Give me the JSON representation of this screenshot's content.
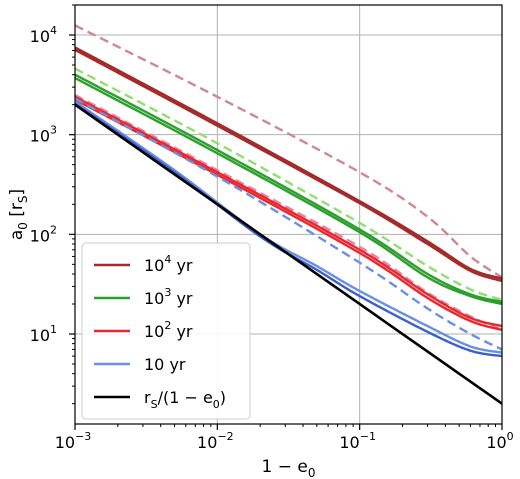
{
  "chart_data": {
    "type": "line",
    "x_scale": "log",
    "y_scale": "log",
    "xlim": [
      0.001,
      1
    ],
    "ylim": [
      1.25,
      20000
    ],
    "grid": true,
    "xlabel": "1 − e₀",
    "ylabel": "a₀ [r_S]",
    "x_ticks": [
      {
        "base": "10",
        "exp": "−3",
        "value": 0.001
      },
      {
        "base": "10",
        "exp": "−2",
        "value": 0.01
      },
      {
        "base": "10",
        "exp": "−1",
        "value": 0.1
      },
      {
        "base": "10",
        "exp": "0",
        "value": 1
      }
    ],
    "y_ticks": [
      {
        "base": "10",
        "exp": "1",
        "value": 10
      },
      {
        "base": "10",
        "exp": "2",
        "value": 100
      },
      {
        "base": "10",
        "exp": "3",
        "value": 1000
      },
      {
        "base": "10",
        "exp": "4",
        "value": 10000
      }
    ],
    "legend": {
      "position": "lower-left",
      "entries": [
        {
          "key": "e4",
          "base": "10",
          "exp": "4",
          "suffix": " yr",
          "color": "#a52a2a"
        },
        {
          "key": "e3",
          "base": "10",
          "exp": "3",
          "suffix": " yr",
          "color": "#2ca02c"
        },
        {
          "key": "e2",
          "base": "10",
          "exp": "2",
          "suffix": " yr",
          "color": "#e8282e"
        },
        {
          "key": "e1",
          "base": "10 yr",
          "exp": "",
          "suffix": "",
          "color": "#6a8fe6"
        },
        {
          "key": "rs",
          "base": "",
          "exp": "",
          "suffix": "",
          "color": "#000000",
          "label": "r_S/(1 − e_0)"
        }
      ]
    },
    "series": [
      {
        "key": "e4-dashed",
        "color": "#d08890",
        "style": "dashed",
        "x": [
          0.001,
          0.01,
          0.1,
          0.3,
          0.6,
          1
        ],
        "y": [
          12500,
          2400,
          420,
          150,
          60,
          37
        ]
      },
      {
        "key": "e4-solid",
        "color": "#a52a2a",
        "style": "solid",
        "x": [
          0.001,
          0.01,
          0.1,
          0.3,
          0.6,
          1
        ],
        "y": [
          7500,
          1300,
          215,
          85,
          45,
          36
        ]
      },
      {
        "key": "e4-solid-2",
        "color": "#a52a2a",
        "style": "solid",
        "x": [
          0.001,
          0.01,
          0.1,
          0.3,
          0.6,
          1
        ],
        "y": [
          7100,
          1230,
          205,
          80,
          43,
          34
        ]
      },
      {
        "key": "e3-dashed",
        "color": "#90e070",
        "style": "dashed",
        "x": [
          0.001,
          0.01,
          0.1,
          0.3,
          0.6,
          1
        ],
        "y": [
          4600,
          820,
          130,
          48,
          28,
          22
        ]
      },
      {
        "key": "e3-solid",
        "color": "#2ca02c",
        "style": "solid",
        "x": [
          0.001,
          0.01,
          0.1,
          0.3,
          0.6,
          1
        ],
        "y": [
          4000,
          700,
          112,
          40,
          25,
          21
        ]
      },
      {
        "key": "e3-solid-2",
        "color": "#2ca02c",
        "style": "solid",
        "x": [
          0.001,
          0.01,
          0.1,
          0.3,
          0.6,
          1
        ],
        "y": [
          3700,
          650,
          105,
          37,
          24,
          20
        ]
      },
      {
        "key": "e2-dashed",
        "color": "#f080a0",
        "style": "dashed",
        "x": [
          0.001,
          0.01,
          0.1,
          0.3,
          0.6,
          1
        ],
        "y": [
          2500,
          440,
          75,
          26,
          15,
          11
        ]
      },
      {
        "key": "e2-solid",
        "color": "#e8282e",
        "style": "solid",
        "x": [
          0.001,
          0.01,
          0.1,
          0.3,
          0.6,
          1
        ],
        "y": [
          2400,
          420,
          70,
          25,
          14.5,
          12
        ]
      },
      {
        "key": "e2-solid-2",
        "color": "#e8282e",
        "style": "solid",
        "x": [
          0.001,
          0.01,
          0.1,
          0.3,
          0.6,
          1
        ],
        "y": [
          2250,
          395,
          65,
          23,
          13.5,
          11
        ]
      },
      {
        "key": "e1-dashed",
        "color": "#6a8fe6",
        "style": "dashed",
        "x": [
          0.001,
          0.01,
          0.1,
          0.3,
          0.6,
          1
        ],
        "y": [
          2300,
          380,
          52,
          18,
          10,
          7
        ]
      },
      {
        "key": "e1-solid",
        "color": "#6a8fe6",
        "style": "solid",
        "x": [
          0.001,
          0.005,
          0.02,
          0.05,
          0.1,
          0.3,
          0.6,
          1
        ],
        "y": [
          2150,
          440,
          100,
          48,
          27,
          12,
          7.5,
          6.5
        ]
      },
      {
        "key": "e1-solid-2",
        "color": "#3c5fcf",
        "style": "solid",
        "x": [
          0.001,
          0.005,
          0.02,
          0.05,
          0.1,
          0.3,
          0.6,
          1
        ],
        "y": [
          2050,
          420,
          95,
          44,
          24,
          10.5,
          6.8,
          6
        ]
      },
      {
        "key": "rs",
        "color": "#000000",
        "style": "solid",
        "x": [
          0.001,
          1
        ],
        "y": [
          2000,
          2
        ]
      }
    ]
  }
}
